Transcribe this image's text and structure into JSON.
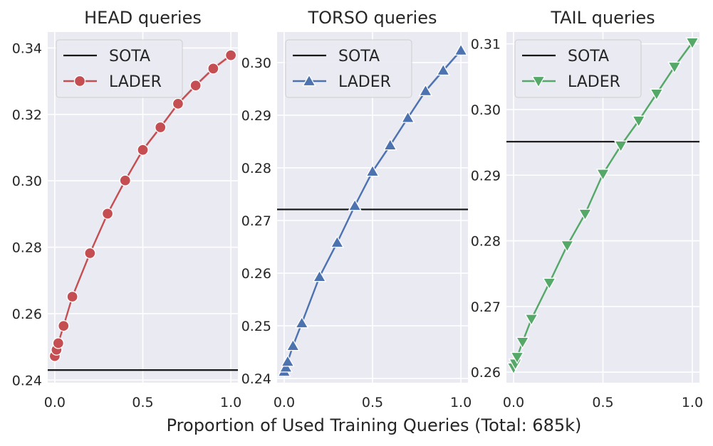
{
  "figure": {
    "xlabel": "Proportion of Used Training Queries (Total: 685k)"
  },
  "chart_data": [
    {
      "type": "line",
      "title": "HEAD queries",
      "xlabel": "",
      "ylabel": "",
      "xlim": [
        -0.04,
        1.04
      ],
      "ylim": [
        0.2392,
        0.3448
      ],
      "xticks": [
        "0.0",
        "0.5",
        "1.0"
      ],
      "xtick_values": [
        0,
        0.5,
        1.0
      ],
      "yticks": [
        "0.24",
        "0.26",
        "0.28",
        "0.30",
        "0.32",
        "0.34"
      ],
      "ytick_values": [
        0.24,
        0.26,
        0.28,
        0.3,
        0.32,
        0.34
      ],
      "grid": true,
      "legend_position": "top-left",
      "sota": {
        "name": "SOTA",
        "value": 0.243,
        "color": "#111111"
      },
      "series": [
        {
          "name": "LADER",
          "color": "#c44e52",
          "marker": "circle",
          "x": [
            0.0,
            0.01,
            0.02,
            0.05,
            0.1,
            0.2,
            0.3,
            0.4,
            0.5,
            0.6,
            0.7,
            0.8,
            0.9,
            1.0
          ],
          "y": [
            0.2472,
            0.2491,
            0.2511,
            0.2563,
            0.2651,
            0.2782,
            0.2901,
            0.3001,
            0.3093,
            0.3161,
            0.3232,
            0.3287,
            0.3338,
            0.3378
          ]
        }
      ]
    },
    {
      "type": "line",
      "title": "TORSO queries",
      "xlabel": "",
      "ylabel": "",
      "xlim": [
        -0.04,
        1.04
      ],
      "ylim": [
        0.2392,
        0.3058
      ],
      "xticks": [
        "0.0",
        "0.5",
        "1.0"
      ],
      "xtick_values": [
        0,
        0.5,
        1.0
      ],
      "yticks": [
        "0.24",
        "0.25",
        "0.26",
        "0.27",
        "0.28",
        "0.29",
        "0.30"
      ],
      "ytick_values": [
        0.24,
        0.25,
        0.26,
        0.27,
        0.28,
        0.29,
        0.3
      ],
      "grid": true,
      "legend_position": "top-left",
      "sota": {
        "name": "SOTA",
        "value": 0.2721,
        "color": "#111111"
      },
      "series": [
        {
          "name": "LADER",
          "color": "#4c72b0",
          "marker": "triangle-up",
          "x": [
            0.0,
            0.01,
            0.02,
            0.05,
            0.1,
            0.2,
            0.3,
            0.4,
            0.5,
            0.6,
            0.7,
            0.8,
            0.9,
            1.0
          ],
          "y": [
            0.2413,
            0.2421,
            0.2432,
            0.2462,
            0.2505,
            0.2593,
            0.2658,
            0.2728,
            0.2793,
            0.2843,
            0.2895,
            0.2946,
            0.2985,
            0.3023
          ]
        }
      ]
    },
    {
      "type": "line",
      "title": "TAIL queries",
      "xlabel": "",
      "ylabel": "",
      "xlim": [
        -0.04,
        1.04
      ],
      "ylim": [
        0.2584,
        0.3118
      ],
      "xticks": [
        "0.0",
        "0.5",
        "1.0"
      ],
      "xtick_values": [
        0,
        0.5,
        1.0
      ],
      "yticks": [
        "0.26",
        "0.27",
        "0.28",
        "0.29",
        "0.30",
        "0.31"
      ],
      "ytick_values": [
        0.26,
        0.27,
        0.28,
        0.29,
        0.3,
        0.31
      ],
      "grid": true,
      "legend_position": "top-left",
      "sota": {
        "name": "SOTA",
        "value": 0.2951,
        "color": "#111111"
      },
      "series": [
        {
          "name": "LADER",
          "color": "#55a868",
          "marker": "triangle-down",
          "x": [
            0.0,
            0.01,
            0.02,
            0.05,
            0.1,
            0.2,
            0.3,
            0.4,
            0.5,
            0.6,
            0.7,
            0.8,
            0.9,
            1.0
          ],
          "y": [
            0.2607,
            0.2613,
            0.2623,
            0.2646,
            0.2681,
            0.2736,
            0.2793,
            0.2841,
            0.2902,
            0.2945,
            0.2983,
            0.3024,
            0.3065,
            0.3102
          ]
        }
      ]
    }
  ]
}
